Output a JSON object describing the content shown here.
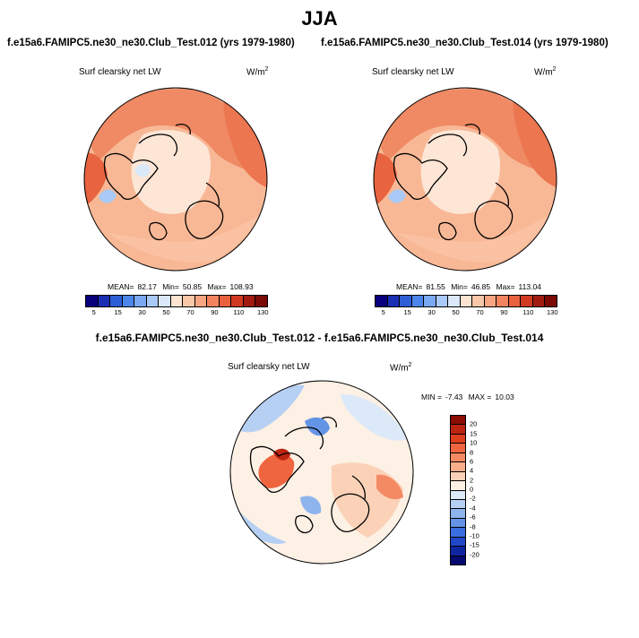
{
  "figure": {
    "title": "JJA",
    "panel1_title": "f.e15a6.FAMIPC5.ne30_ne30.Club_Test.012 (yrs 1979-1980)",
    "panel2_title": "f.e15a6.FAMIPC5.ne30_ne30.Club_Test.014 (yrs 1979-1980)",
    "diff_title": "f.e15a6.FAMIPC5.ne30_ne30.Club_Test.012 - f.e15a6.FAMIPC5.ne30_ne30.Club_Test.014"
  },
  "panels": [
    {
      "variable": "Surf clearsky net LW",
      "unit_base": "W/m",
      "unit_exp": "2",
      "mean_label": "MEAN=",
      "mean": "82.17",
      "min_label": "Min=",
      "min": "50.85",
      "max_label": "Max=",
      "max": "108.93"
    },
    {
      "variable": "Surf clearsky net LW",
      "unit_base": "W/m",
      "unit_exp": "2",
      "mean_label": "MEAN=",
      "mean": "81.55",
      "min_label": "Min=",
      "min": "46.85",
      "max_label": "Max=",
      "max": "113.04"
    }
  ],
  "diff_panel": {
    "variable": "Surf clearsky net LW",
    "unit_base": "W/m",
    "unit_exp": "2",
    "min_label": "MIN =",
    "min": "-7.43",
    "max_label": "MAX =",
    "max": "10.03"
  },
  "colorbar_abs": {
    "colors": [
      "#08007a",
      "#1a2fb4",
      "#2e5ed6",
      "#4d86ea",
      "#7aa8f2",
      "#a9c9f6",
      "#dbe8fa",
      "#fde4d2",
      "#fac7a8",
      "#f6a481",
      "#f1845f",
      "#e9613f",
      "#d03a22",
      "#a11b10",
      "#7a0a05"
    ],
    "ticks": [
      "5",
      "15",
      "30",
      "50",
      "70",
      "90",
      "110",
      "130"
    ],
    "tick_positions": [
      1,
      3,
      5,
      7,
      9,
      11,
      13,
      15
    ]
  },
  "colorbar_diff": {
    "colors_top_to_bottom": [
      "#8b0d05",
      "#bb2410",
      "#de3e1e",
      "#ef6540",
      "#f48a63",
      "#f8ae8b",
      "#fbd2b8",
      "#fdf0e4",
      "#dce9f8",
      "#b6d0f4",
      "#8eb4ee",
      "#6394e6",
      "#3a6ddf",
      "#1f47c8",
      "#0f25a0",
      "#060a70"
    ],
    "labels_top_to_bottom": [
      "20",
      "15",
      "10",
      "8",
      "6",
      "4",
      "2",
      "0",
      "-2",
      "-4",
      "-6",
      "-8",
      "-10",
      "-15",
      "-20"
    ]
  }
}
